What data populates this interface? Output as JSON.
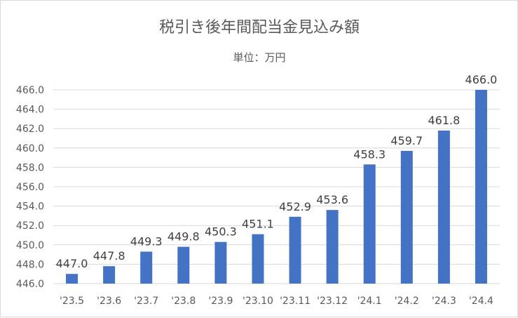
{
  "chart_data": {
    "type": "bar",
    "title": "税引き後年間配当金見込み額",
    "subtitle": "単位：万円",
    "categories": [
      "'23.5",
      "'23.6",
      "'23.7",
      "'23.8",
      "'23.9",
      "'23.10",
      "'23.11",
      "'23.12",
      "'24.1",
      "'24.2",
      "'24.3",
      "'24.4"
    ],
    "values": [
      447.0,
      447.8,
      449.3,
      449.8,
      450.3,
      451.1,
      452.9,
      453.6,
      458.3,
      459.7,
      461.8,
      466.0
    ],
    "data_labels": [
      "447.0",
      "447.8",
      "449.3",
      "449.8",
      "450.3",
      "451.1",
      "452.9",
      "453.6",
      "458.3",
      "459.7",
      "461.8",
      "466.0"
    ],
    "y_ticks": [
      "446.0",
      "448.0",
      "450.0",
      "452.0",
      "454.0",
      "456.0",
      "458.0",
      "460.0",
      "462.0",
      "464.0",
      "466.0"
    ],
    "ylim": [
      446,
      466
    ],
    "bar_color": "#4472c4",
    "grid": true,
    "legend": "none"
  }
}
